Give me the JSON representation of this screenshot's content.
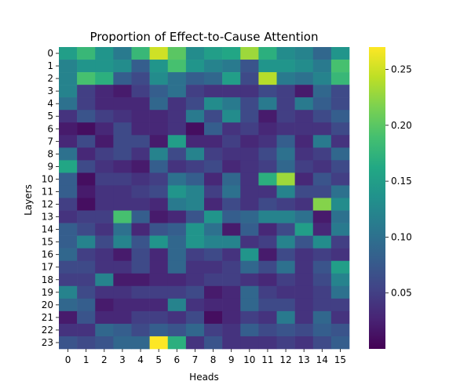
{
  "chart_data": {
    "type": "heatmap",
    "title": "Proportion of Effect-to-Cause Attention",
    "xlabel": "Heads",
    "ylabel": "Layers",
    "x_categories": [
      "0",
      "1",
      "2",
      "3",
      "4",
      "5",
      "6",
      "7",
      "8",
      "9",
      "10",
      "11",
      "12",
      "13",
      "14",
      "15"
    ],
    "y_categories": [
      "0",
      "1",
      "2",
      "3",
      "4",
      "5",
      "6",
      "7",
      "8",
      "9",
      "10",
      "11",
      "12",
      "13",
      "14",
      "15",
      "16",
      "17",
      "18",
      "19",
      "20",
      "21",
      "22",
      "23"
    ],
    "colorbar": {
      "colormap": "viridis",
      "vmin": 0.0,
      "vmax": 0.27,
      "ticks": [
        0.05,
        0.1,
        0.15,
        0.2,
        0.25
      ],
      "tick_labels": [
        "0.05",
        "0.10",
        "0.15",
        "0.20",
        "0.25"
      ]
    },
    "values": [
      [
        0.15,
        0.18,
        0.14,
        0.11,
        0.18,
        0.25,
        0.2,
        0.13,
        0.15,
        0.16,
        0.23,
        0.17,
        0.13,
        0.12,
        0.09,
        0.14
      ],
      [
        0.12,
        0.14,
        0.14,
        0.13,
        0.08,
        0.14,
        0.19,
        0.14,
        0.12,
        0.11,
        0.07,
        0.14,
        0.14,
        0.13,
        0.11,
        0.19
      ],
      [
        0.12,
        0.19,
        0.17,
        0.08,
        0.06,
        0.13,
        0.1,
        0.08,
        0.09,
        0.15,
        0.06,
        0.24,
        0.11,
        0.1,
        0.12,
        0.18
      ],
      [
        0.12,
        0.05,
        0.03,
        0.02,
        0.05,
        0.08,
        0.1,
        0.05,
        0.04,
        0.04,
        0.04,
        0.06,
        0.05,
        0.02,
        0.09,
        0.06
      ],
      [
        0.1,
        0.05,
        0.03,
        0.03,
        0.03,
        0.09,
        0.04,
        0.06,
        0.13,
        0.11,
        0.06,
        0.11,
        0.05,
        0.11,
        0.08,
        0.06
      ],
      [
        0.04,
        0.07,
        0.05,
        0.04,
        0.03,
        0.03,
        0.04,
        0.11,
        0.06,
        0.13,
        0.06,
        0.02,
        0.05,
        0.04,
        0.06,
        0.08
      ],
      [
        0.02,
        0.01,
        0.03,
        0.06,
        0.03,
        0.03,
        0.04,
        0.01,
        0.08,
        0.04,
        0.05,
        0.03,
        0.04,
        0.04,
        0.04,
        0.06
      ],
      [
        0.03,
        0.06,
        0.02,
        0.06,
        0.06,
        0.02,
        0.15,
        0.03,
        0.03,
        0.05,
        0.03,
        0.04,
        0.08,
        0.03,
        0.11,
        0.04
      ],
      [
        0.1,
        0.03,
        0.05,
        0.06,
        0.04,
        0.12,
        0.06,
        0.12,
        0.05,
        0.04,
        0.04,
        0.06,
        0.1,
        0.04,
        0.05,
        0.09
      ],
      [
        0.16,
        0.06,
        0.04,
        0.03,
        0.02,
        0.08,
        0.04,
        0.05,
        0.06,
        0.03,
        0.04,
        0.05,
        0.09,
        0.05,
        0.04,
        0.06
      ],
      [
        0.08,
        0.01,
        0.05,
        0.05,
        0.04,
        0.05,
        0.1,
        0.08,
        0.03,
        0.09,
        0.04,
        0.17,
        0.23,
        0.03,
        0.07,
        0.05
      ],
      [
        0.08,
        0.02,
        0.04,
        0.04,
        0.05,
        0.06,
        0.14,
        0.12,
        0.05,
        0.1,
        0.04,
        0.04,
        0.12,
        0.06,
        0.06,
        0.1
      ],
      [
        0.05,
        0.01,
        0.04,
        0.04,
        0.04,
        0.03,
        0.11,
        0.12,
        0.03,
        0.06,
        0.04,
        0.06,
        0.05,
        0.04,
        0.22,
        0.13
      ],
      [
        0.04,
        0.05,
        0.05,
        0.19,
        0.08,
        0.02,
        0.03,
        0.07,
        0.14,
        0.08,
        0.09,
        0.12,
        0.12,
        0.1,
        0.02,
        0.1
      ],
      [
        0.08,
        0.06,
        0.04,
        0.1,
        0.03,
        0.07,
        0.08,
        0.14,
        0.1,
        0.02,
        0.08,
        0.03,
        0.06,
        0.15,
        0.03,
        0.11
      ],
      [
        0.08,
        0.12,
        0.06,
        0.12,
        0.07,
        0.14,
        0.09,
        0.14,
        0.12,
        0.12,
        0.04,
        0.05,
        0.12,
        0.07,
        0.13,
        0.05
      ],
      [
        0.09,
        0.05,
        0.04,
        0.02,
        0.06,
        0.03,
        0.09,
        0.05,
        0.06,
        0.04,
        0.14,
        0.02,
        0.06,
        0.04,
        0.05,
        0.04
      ],
      [
        0.06,
        0.06,
        0.04,
        0.04,
        0.06,
        0.03,
        0.09,
        0.04,
        0.04,
        0.05,
        0.09,
        0.06,
        0.1,
        0.04,
        0.07,
        0.15
      ],
      [
        0.05,
        0.05,
        0.12,
        0.02,
        0.02,
        0.03,
        0.03,
        0.04,
        0.05,
        0.05,
        0.04,
        0.03,
        0.05,
        0.04,
        0.06,
        0.12
      ],
      [
        0.12,
        0.06,
        0.04,
        0.04,
        0.05,
        0.05,
        0.05,
        0.06,
        0.02,
        0.03,
        0.09,
        0.05,
        0.04,
        0.04,
        0.05,
        0.1
      ],
      [
        0.09,
        0.08,
        0.02,
        0.03,
        0.03,
        0.03,
        0.12,
        0.04,
        0.03,
        0.03,
        0.09,
        0.06,
        0.06,
        0.04,
        0.05,
        0.05
      ],
      [
        0.02,
        0.07,
        0.03,
        0.03,
        0.05,
        0.05,
        0.04,
        0.06,
        0.01,
        0.03,
        0.05,
        0.04,
        0.11,
        0.04,
        0.09,
        0.04
      ],
      [
        0.04,
        0.04,
        0.09,
        0.08,
        0.06,
        0.08,
        0.07,
        0.09,
        0.05,
        0.04,
        0.08,
        0.06,
        0.07,
        0.06,
        0.08,
        0.07
      ],
      [
        0.07,
        0.06,
        0.07,
        0.09,
        0.09,
        0.27,
        0.17,
        0.04,
        0.07,
        0.04,
        0.04,
        0.04,
        0.05,
        0.04,
        0.06,
        0.08
      ]
    ]
  }
}
